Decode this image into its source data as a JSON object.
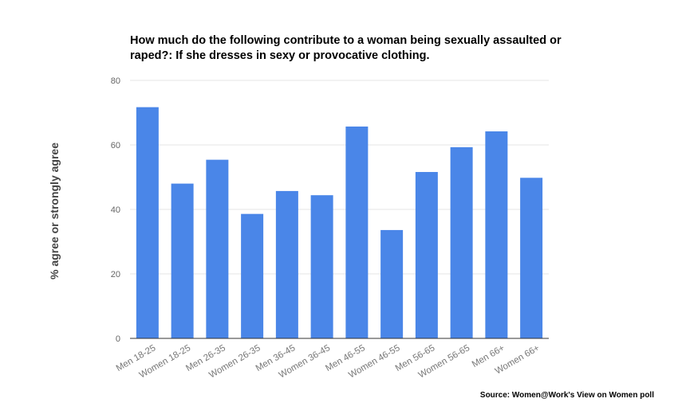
{
  "chart_data": {
    "type": "bar",
    "title": "How much do the following contribute to a woman being sexually assaulted or raped?: If she dresses in sexy or provocative clothing.",
    "xlabel": "",
    "ylabel": "% agree or strongly agree",
    "ylim": [
      0,
      80
    ],
    "yticks": [
      0,
      20,
      40,
      60,
      80
    ],
    "categories": [
      "Men 18-25",
      "Women 18-25",
      "Men 26-35",
      "Women 26-35",
      "Men 36-45",
      "Women 36-45",
      "Men 46-55",
      "Women 46-55",
      "Men 56-65",
      "Women 56-65",
      "Men 66+",
      "Women 66+"
    ],
    "values": [
      71.7,
      48.0,
      55.4,
      38.6,
      45.7,
      44.4,
      65.7,
      33.6,
      51.6,
      59.3,
      64.2,
      49.8
    ],
    "bar_color": "#4a86e8",
    "grid": true,
    "legend": "none"
  },
  "source": "Source: Women@Work's View on Women poll"
}
